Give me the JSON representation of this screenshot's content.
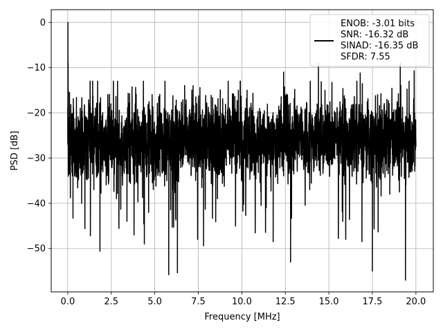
{
  "chart_data": {
    "type": "line",
    "xlabel": "Frequency [MHz]",
    "ylabel": "PSD [dB]",
    "xlim": [
      -0.95,
      21.0
    ],
    "ylim": [
      -59.6,
      2.8
    ],
    "xticks": [
      0.0,
      2.5,
      5.0,
      7.5,
      10.0,
      12.5,
      15.0,
      17.5,
      20.0
    ],
    "xtick_labels": [
      "0.0",
      "2.5",
      "5.0",
      "7.5",
      "10.0",
      "12.5",
      "15.0",
      "17.5",
      "20.0"
    ],
    "yticks": [
      0,
      -10,
      -20,
      -30,
      -40,
      -50
    ],
    "ytick_labels": [
      "0",
      "−10",
      "−20",
      "−30",
      "−40",
      "−50"
    ],
    "grid": true,
    "legend_position": "top-right",
    "series": [
      {
        "legend_lines": [
          "ENOB: -3.01 bits",
          "SNR: -16.32 dB",
          "SINAD: -16.35 dB",
          "SFDR: 7.55"
        ],
        "color": "#000000",
        "noise_floor_db": -26,
        "points": [
          [
            0.0,
            -26
          ],
          [
            0.01,
            0.0
          ],
          [
            0.02,
            -9
          ],
          [
            0.03,
            -15
          ],
          [
            0.05,
            -21
          ],
          [
            0.1,
            -15.5
          ],
          [
            0.15,
            -38.8
          ],
          [
            0.3,
            -43.3
          ],
          [
            0.3,
            -20
          ],
          [
            0.32,
            -16.9
          ],
          [
            0.8,
            -40.0
          ],
          [
            1.3,
            -47.2
          ],
          [
            1.5,
            -37
          ],
          [
            1.85,
            -50.6
          ],
          [
            2.3,
            -16
          ],
          [
            2.8,
            -39
          ],
          [
            3.4,
            -44
          ],
          [
            3.9,
            -15
          ],
          [
            4.4,
            -49
          ],
          [
            5.3,
            -34
          ],
          [
            5.8,
            -55.8
          ],
          [
            6.2,
            -43
          ],
          [
            6.3,
            -55.4
          ],
          [
            7.2,
            -14
          ],
          [
            7.8,
            -49.4
          ],
          [
            8.6,
            -39
          ],
          [
            9.8,
            -15
          ],
          [
            10.3,
            -15
          ],
          [
            11.4,
            -41
          ],
          [
            11.8,
            -48.5
          ],
          [
            12.4,
            -11
          ],
          [
            12.8,
            -53.0
          ],
          [
            13.9,
            -37
          ],
          [
            14.4,
            -9
          ],
          [
            15.8,
            -44
          ],
          [
            16.8,
            -11.2
          ],
          [
            16.9,
            -48.5
          ],
          [
            17.5,
            -55
          ],
          [
            17.8,
            -16
          ],
          [
            18.5,
            -38
          ],
          [
            19.1,
            -9
          ],
          [
            19.4,
            -57.0
          ],
          [
            19.9,
            -10.7
          ],
          [
            20.0,
            -26
          ]
        ]
      }
    ]
  }
}
